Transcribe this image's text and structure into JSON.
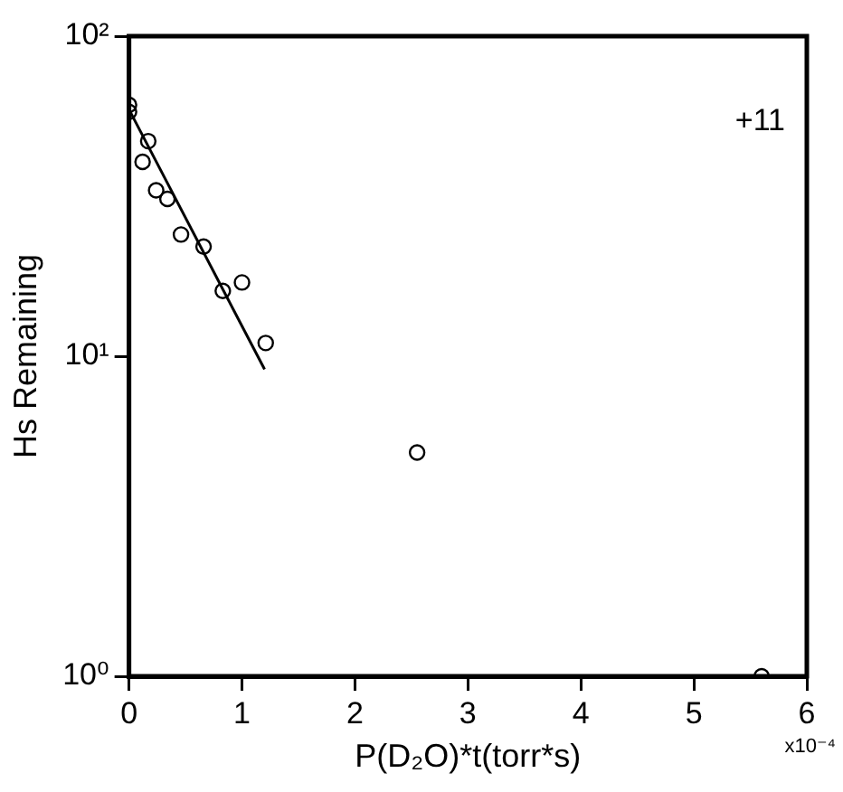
{
  "chart_data": {
    "type": "scatter",
    "xlabel": "P(D₂O)*t(torr*s)",
    "ylabel": "Hs Remaining",
    "log": "y",
    "grid": false,
    "legend": false,
    "xlim": [
      0,
      6
    ],
    "xticks": [
      0,
      1,
      2,
      3,
      4,
      5,
      6
    ],
    "ylim": [
      1,
      100
    ],
    "yticks": [
      {
        "value": 1,
        "label": "10⁰"
      },
      {
        "value": 10,
        "label": "10¹"
      },
      {
        "value": 100,
        "label": "10²"
      }
    ],
    "annotations": [
      "+11",
      "x10⁻⁴"
    ],
    "series": [
      {
        "color": "#000000",
        "marker": "circle",
        "x": [
          0,
          0,
          0.12,
          0.17,
          0.24,
          0.34,
          0.46,
          0.66,
          0.83,
          1.0,
          1.21,
          2.55,
          5.6
        ],
        "values": [
          61,
          58,
          40.5,
          47,
          33,
          31,
          24,
          22,
          16,
          17,
          11,
          5,
          1
        ]
      },
      {
        "type": "line",
        "color": "#000000",
        "marker": "none",
        "line_style": "solid",
        "x": [
          0,
          1.2
        ],
        "values": [
          59,
          9.1
        ]
      }
    ]
  }
}
